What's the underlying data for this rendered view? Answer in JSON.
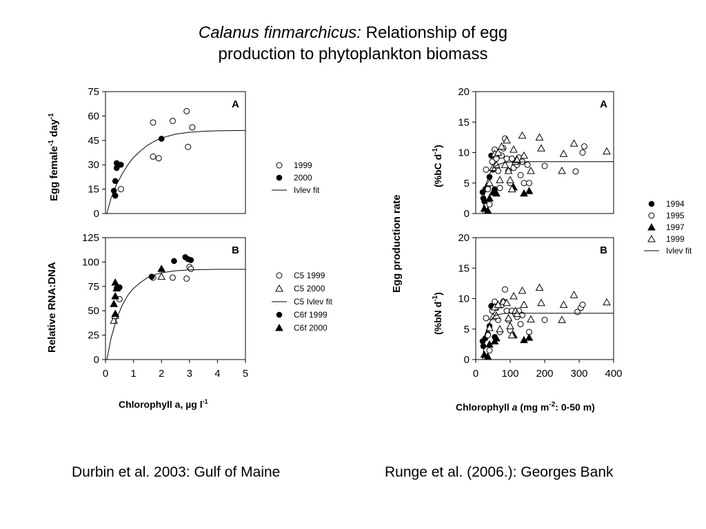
{
  "slide": {
    "title_italic": "Calanus finmarchicus:",
    "title_rest_1": " Relationship of egg",
    "title_line2": "production to phytoplankton biomass",
    "caption_left": "Durbin et al. 2003: Gulf of Maine",
    "caption_right": "Runge et al. (2006.): Georges Bank"
  },
  "colors": {
    "ink": "#000000",
    "open_fill": "#ffffff"
  },
  "chart_data": [
    {
      "type": "scatter",
      "panel": "A",
      "group": "Durbin et al. 2003",
      "ylabel": "Egg female-1 day-1",
      "xlim": [
        0,
        5
      ],
      "ylim": [
        0,
        75
      ],
      "yticks": [
        0,
        15,
        30,
        45,
        60,
        75
      ],
      "series": [
        {
          "name": "1999",
          "marker": "circle-open",
          "points": [
            [
              0.55,
              15
            ],
            [
              1.7,
              35
            ],
            [
              1.9,
              34
            ],
            [
              1.7,
              56
            ],
            [
              2.4,
              57
            ],
            [
              2.9,
              63
            ],
            [
              3.1,
              53
            ],
            [
              2.95,
              41
            ]
          ]
        },
        {
          "name": "2000",
          "marker": "circle-filled",
          "points": [
            [
              0.3,
              14
            ],
            [
              0.35,
              11
            ],
            [
              0.35,
              20
            ],
            [
              0.4,
              28
            ],
            [
              0.4,
              31
            ],
            [
              0.55,
              30
            ],
            [
              2.0,
              46
            ]
          ]
        },
        {
          "name": "Ivlev fit",
          "marker": "line",
          "points": [
            [
              0.05,
              0
            ],
            [
              0.2,
              9.5
            ],
            [
              0.4,
              18
            ],
            [
              0.6,
              24.5
            ],
            [
              0.8,
              30
            ],
            [
              1.0,
              34.5
            ],
            [
              1.25,
              38.5
            ],
            [
              1.5,
              42
            ],
            [
              1.75,
              44.5
            ],
            [
              2.0,
              46.5
            ],
            [
              2.5,
              48.8
            ],
            [
              3.0,
              50
            ],
            [
              3.5,
              50.6
            ],
            [
              4.0,
              50.9
            ],
            [
              4.5,
              51
            ],
            [
              5.0,
              51.1
            ]
          ]
        }
      ]
    },
    {
      "type": "scatter",
      "panel": "B",
      "group": "Durbin et al. 2003",
      "ylabel": "Relative RNA:DNA",
      "xlabel": "Chlorophyll a, µg l-1",
      "xlim": [
        0,
        5
      ],
      "ylim": [
        0,
        125
      ],
      "xticks": [
        0,
        1,
        2,
        3,
        4,
        5
      ],
      "yticks": [
        0,
        25,
        50,
        75,
        100,
        125
      ],
      "series": [
        {
          "name": "C5 1999",
          "marker": "circle-open",
          "points": [
            [
              0.5,
              62
            ],
            [
              1.7,
              84
            ],
            [
              2.4,
              84
            ],
            [
              2.9,
              83
            ],
            [
              3.0,
              95
            ],
            [
              3.05,
              93
            ]
          ]
        },
        {
          "name": "C5 2000",
          "marker": "triangle-open",
          "points": [
            [
              0.3,
              40
            ],
            [
              0.35,
              45
            ],
            [
              2.0,
              85
            ]
          ]
        },
        {
          "name": "C5 Ivlev fit",
          "marker": "line",
          "points": [
            [
              0.05,
              0
            ],
            [
              0.2,
              22
            ],
            [
              0.4,
              42
            ],
            [
              0.6,
              56
            ],
            [
              0.8,
              66
            ],
            [
              1.0,
              73
            ],
            [
              1.25,
              79
            ],
            [
              1.5,
              84
            ],
            [
              1.75,
              87
            ],
            [
              2.0,
              89
            ],
            [
              2.5,
              91
            ],
            [
              3.0,
              92
            ],
            [
              4.0,
              92.5
            ],
            [
              5.0,
              92.5
            ]
          ]
        },
        {
          "name": "C6f 1999",
          "marker": "circle-filled",
          "points": [
            [
              0.4,
              73
            ],
            [
              0.5,
              74
            ],
            [
              1.65,
              85
            ],
            [
              2.45,
              101
            ],
            [
              2.85,
              105
            ],
            [
              2.95,
              103
            ],
            [
              3.05,
              102
            ]
          ]
        },
        {
          "name": "C6f 2000",
          "marker": "triangle-filled",
          "points": [
            [
              0.3,
              57
            ],
            [
              0.35,
              65
            ],
            [
              0.35,
              79
            ],
            [
              0.35,
              47
            ],
            [
              0.4,
              73
            ],
            [
              2.0,
              93
            ]
          ]
        }
      ]
    },
    {
      "type": "scatter",
      "panel": "A",
      "group": "Runge et al. 2006",
      "ylabel": "(%bC d-1)",
      "shared_ylabel": "Egg production rate",
      "xlim": [
        0,
        400
      ],
      "ylim": [
        0,
        20
      ],
      "yticks": [
        0,
        5,
        10,
        15,
        20
      ],
      "series": [
        {
          "name": "1994",
          "marker": "circle-filled",
          "points": [
            [
              20,
              3.5
            ],
            [
              22,
              2.5
            ],
            [
              25,
              2.0
            ],
            [
              28,
              4.0
            ],
            [
              35,
              4.5
            ],
            [
              40,
              6.0
            ],
            [
              45,
              9.5
            ],
            [
              50,
              7.2
            ],
            [
              55,
              4.0
            ]
          ]
        },
        {
          "name": "1995",
          "marker": "circle-open",
          "points": [
            [
              30,
              7.2
            ],
            [
              35,
              4.0
            ],
            [
              40,
              1.5
            ],
            [
              48,
              8.5
            ],
            [
              55,
              10.5
            ],
            [
              60,
              9.0
            ],
            [
              65,
              7.0
            ],
            [
              70,
              4.2
            ],
            [
              75,
              9.5
            ],
            [
              80,
              10.7
            ],
            [
              85,
              12.3
            ],
            [
              90,
              9.0
            ],
            [
              95,
              7.0
            ],
            [
              100,
              5.0
            ],
            [
              105,
              9.0
            ],
            [
              110,
              7.5
            ],
            [
              115,
              8.3
            ],
            [
              120,
              8.0
            ],
            [
              125,
              9.2
            ],
            [
              130,
              6.3
            ],
            [
              135,
              8.5
            ],
            [
              140,
              5.0
            ],
            [
              150,
              8.0
            ],
            [
              155,
              5.0
            ],
            [
              200,
              7.8
            ],
            [
              290,
              6.9
            ],
            [
              310,
              10.0
            ],
            [
              315,
              11.0
            ]
          ]
        },
        {
          "name": "1997",
          "marker": "triangle-filled",
          "points": [
            [
              25,
              0.8
            ],
            [
              35,
              0.5
            ],
            [
              40,
              2.5
            ],
            [
              50,
              3.5
            ],
            [
              60,
              3.3
            ],
            [
              110,
              4.3
            ],
            [
              140,
              3.3
            ],
            [
              155,
              3.7
            ]
          ]
        },
        {
          "name": "1999",
          "marker": "triangle-open",
          "points": [
            [
              40,
              5.0
            ],
            [
              50,
              7.5
            ],
            [
              55,
              9.8
            ],
            [
              60,
              8.0
            ],
            [
              65,
              10.0
            ],
            [
              70,
              5.5
            ],
            [
              75,
              11.0
            ],
            [
              85,
              8.0
            ],
            [
              90,
              12.0
            ],
            [
              95,
              7.0
            ],
            [
              100,
              5.5
            ],
            [
              105,
              4.0
            ],
            [
              110,
              10.5
            ],
            [
              115,
              8.5
            ],
            [
              120,
              8.8
            ],
            [
              135,
              12.8
            ],
            [
              140,
              9.5
            ],
            [
              160,
              7.0
            ],
            [
              185,
              12.5
            ],
            [
              190,
              10.7
            ],
            [
              250,
              7.0
            ],
            [
              255,
              9.8
            ],
            [
              285,
              11.5
            ],
            [
              380,
              10.2
            ]
          ]
        },
        {
          "name": "Ivlev fit",
          "marker": "line",
          "points": [
            [
              20,
              0
            ],
            [
              25,
              3.0
            ],
            [
              30,
              4.8
            ],
            [
              40,
              6.5
            ],
            [
              50,
              7.4
            ],
            [
              60,
              7.9
            ],
            [
              80,
              8.3
            ],
            [
              100,
              8.45
            ],
            [
              150,
              8.5
            ],
            [
              200,
              8.5
            ],
            [
              400,
              8.5
            ]
          ]
        }
      ]
    },
    {
      "type": "scatter",
      "panel": "B",
      "group": "Runge et al. 2006",
      "ylabel": "(%bN d-1)",
      "shared_ylabel": "Egg production rate",
      "xlabel": "Chlorophyll a (mg m-2: 0-50 m)",
      "xlim": [
        0,
        400
      ],
      "ylim": [
        0,
        20
      ],
      "xticks": [
        0,
        100,
        200,
        300,
        400
      ],
      "yticks": [
        0,
        5,
        10,
        15,
        20
      ],
      "series": [
        {
          "name": "1994",
          "marker": "circle-filled",
          "points": [
            [
              20,
              3.0
            ],
            [
              22,
              2.2
            ],
            [
              28,
              3.5
            ],
            [
              35,
              4.2
            ],
            [
              40,
              5.5
            ],
            [
              45,
              8.8
            ],
            [
              55,
              3.7
            ]
          ]
        },
        {
          "name": "1995",
          "marker": "circle-open",
          "points": [
            [
              30,
              6.8
            ],
            [
              35,
              4.0
            ],
            [
              40,
              1.5
            ],
            [
              48,
              8.0
            ],
            [
              55,
              9.5
            ],
            [
              60,
              8.5
            ],
            [
              65,
              6.5
            ],
            [
              70,
              4.5
            ],
            [
              75,
              8.9
            ],
            [
              80,
              9.5
            ],
            [
              85,
              11.5
            ],
            [
              90,
              8.0
            ],
            [
              95,
              6.5
            ],
            [
              100,
              4.8
            ],
            [
              105,
              8.0
            ],
            [
              115,
              7.5
            ],
            [
              120,
              7.0
            ],
            [
              125,
              8.0
            ],
            [
              130,
              5.8
            ],
            [
              135,
              7.3
            ],
            [
              155,
              4.5
            ],
            [
              200,
              6.5
            ],
            [
              295,
              7.8
            ],
            [
              305,
              8.5
            ],
            [
              310,
              9.0
            ]
          ]
        },
        {
          "name": "1997",
          "marker": "triangle-filled",
          "points": [
            [
              25,
              0.8
            ],
            [
              35,
              0.5
            ],
            [
              40,
              2.5
            ],
            [
              55,
              3.0
            ],
            [
              60,
              3.5
            ],
            [
              110,
              4.0
            ],
            [
              140,
              3.2
            ],
            [
              155,
              3.6
            ]
          ]
        },
        {
          "name": "1999",
          "marker": "triangle-open",
          "points": [
            [
              40,
              5.2
            ],
            [
              50,
              7.0
            ],
            [
              55,
              8.6
            ],
            [
              60,
              7.2
            ],
            [
              65,
              9.0
            ],
            [
              70,
              5.0
            ],
            [
              80,
              9.5
            ],
            [
              90,
              9.3
            ],
            [
              95,
              6.8
            ],
            [
              100,
              5.5
            ],
            [
              105,
              4.0
            ],
            [
              110,
              10.4
            ],
            [
              115,
              8.0
            ],
            [
              120,
              7.5
            ],
            [
              135,
              11.3
            ],
            [
              140,
              9.0
            ],
            [
              160,
              6.6
            ],
            [
              185,
              11.8
            ],
            [
              190,
              9.3
            ],
            [
              250,
              6.5
            ],
            [
              255,
              9.0
            ],
            [
              285,
              10.6
            ],
            [
              380,
              9.4
            ]
          ]
        },
        {
          "name": "Ivlev fit",
          "marker": "line",
          "points": [
            [
              20,
              0
            ],
            [
              25,
              2.8
            ],
            [
              30,
              4.5
            ],
            [
              40,
              6.1
            ],
            [
              50,
              6.9
            ],
            [
              60,
              7.3
            ],
            [
              80,
              7.55
            ],
            [
              100,
              7.6
            ],
            [
              200,
              7.6
            ],
            [
              400,
              7.6
            ]
          ]
        }
      ]
    }
  ]
}
